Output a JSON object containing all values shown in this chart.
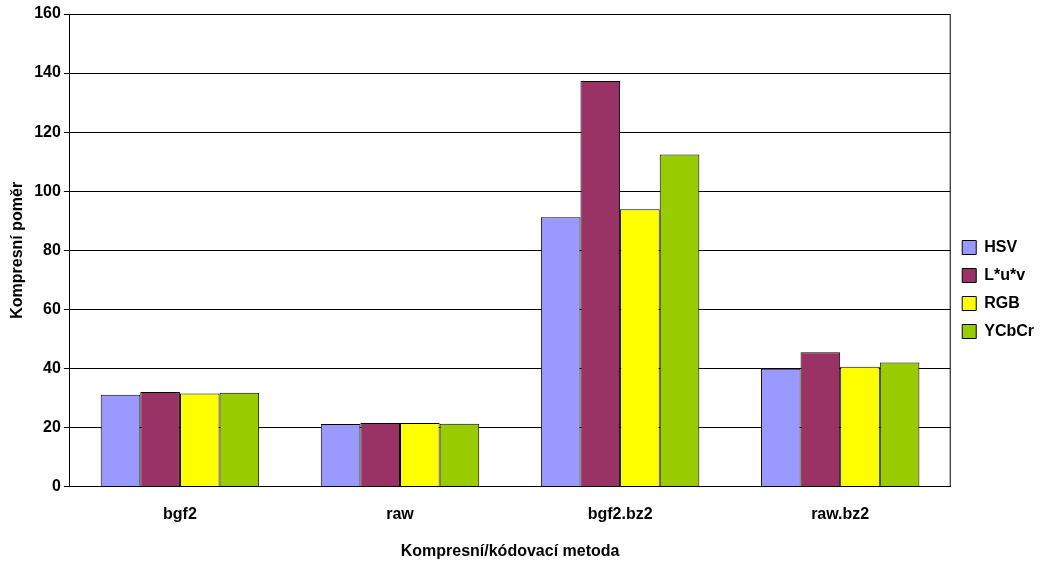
{
  "chart_data": {
    "type": "bar",
    "xlabel": "Kompresní/kódovací metoda",
    "ylabel": "Kompresní poměr",
    "categories": [
      "bgf2",
      "raw",
      "bgf2.bz2",
      "raw.bz2"
    ],
    "series": [
      {
        "name": "HSV",
        "color": "#9999ff",
        "values": [
          31.1,
          21.2,
          91.2,
          39.9
        ]
      },
      {
        "name": "L*u*v",
        "color": "#993366",
        "values": [
          32.0,
          21.5,
          137.3,
          45.5
        ]
      },
      {
        "name": "RGB",
        "color": "#ffff00",
        "values": [
          31.5,
          21.5,
          93.9,
          40.6
        ]
      },
      {
        "name": "YCbCr",
        "color": "#99cc00",
        "values": [
          31.8,
          21.3,
          112.4,
          42.0
        ]
      }
    ],
    "ylim": [
      0,
      160
    ],
    "yticks": [
      0,
      20,
      40,
      60,
      80,
      100,
      120,
      140,
      160
    ],
    "grid": "y",
    "legend": "right"
  }
}
